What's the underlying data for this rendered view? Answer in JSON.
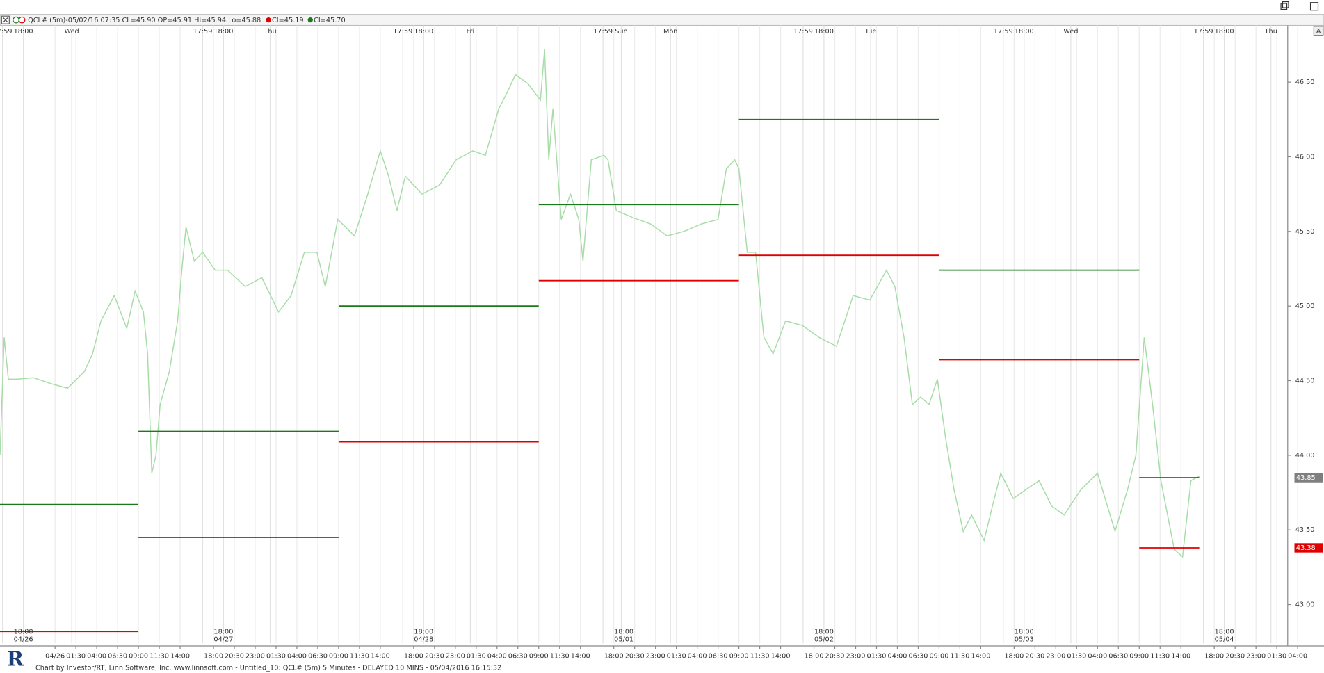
{
  "window": {
    "header": "QCL# (5m)-05/02/16 07:35 CL=45.90 OP=45.91 Hi=45.94 Lo=45.88",
    "autoscale_button": "A",
    "footer": "Chart by Investor/RT, Linn Software, Inc. www.linnsoft.com - Untitled_10: QCL# (5m) 5 Minutes - DELAYED 10 MINS - 05/04/2016 16:15:32"
  },
  "chart_data": {
    "type": "line",
    "x": [
      -1.6,
      -1.1,
      -0.6,
      0.4,
      2.4,
      4.5,
      6.5,
      8.5,
      9.5,
      10.5,
      12.1,
      13.6,
      14.6,
      15.6,
      16.1,
      16.6,
      17.1,
      17.6,
      18.7,
      19.7,
      20.2,
      20.7,
      21.7,
      22.7,
      24.2,
      25.7,
      27.8,
      29.8,
      31.8,
      33.3,
      34.9,
      36.4,
      37.4,
      38.9,
      40.9,
      42.5,
      44.0,
      45.0,
      46.0,
      47.0,
      48.0,
      49.0,
      51.1,
      53.1,
      55.1,
      56.6,
      58.2,
      59.2,
      60.2,
      61.7,
      63.2,
      63.7,
      64.2,
      64.7,
      65.7,
      66.8,
      67.8,
      68.3,
      69.3,
      70.8,
      71.3,
      72.3,
      74.4,
      76.4,
      78.4,
      80.4,
      82.5,
      84.5,
      85.5,
      86.5,
      87.0,
      88.0,
      89.0,
      90.0,
      91.1,
      92.6,
      94.6,
      96.6,
      98.7,
      100.7,
      102.7,
      104.7,
      105.7,
      106.8,
      107.8,
      108.8,
      109.8,
      110.8,
      111.8,
      112.8,
      113.9,
      114.9,
      116.4,
      117.4,
      118.4,
      119.9,
      121.4,
      123.0,
      124.5,
      126.0,
      128.0,
      130.0,
      132.1,
      133.6,
      134.6,
      135.6,
      136.6,
      137.6,
      139.2,
      140.2,
      141.2,
      142.2
    ],
    "series": [
      {
        "color": "#a6dca6",
        "values": [
          44.0,
          44.79,
          44.51,
          44.51,
          44.52,
          44.48,
          44.45,
          44.56,
          44.68,
          44.9,
          45.07,
          44.85,
          45.1,
          44.96,
          44.68,
          43.88,
          44.0,
          44.34,
          44.56,
          44.9,
          45.24,
          45.53,
          45.3,
          45.36,
          45.24,
          45.24,
          45.13,
          45.19,
          44.96,
          45.07,
          45.36,
          45.36,
          45.13,
          45.58,
          45.47,
          45.75,
          46.04,
          45.87,
          45.64,
          45.87,
          45.81,
          45.75,
          45.81,
          45.98,
          46.04,
          46.01,
          46.32,
          46.43,
          46.55,
          46.49,
          46.38,
          46.72,
          45.98,
          46.32,
          45.58,
          45.75,
          45.58,
          45.3,
          45.98,
          46.01,
          45.98,
          45.64,
          45.59,
          45.55,
          45.47,
          45.5,
          45.55,
          45.58,
          45.92,
          45.98,
          45.92,
          45.36,
          45.36,
          44.79,
          44.68,
          44.9,
          44.87,
          44.79,
          44.73,
          45.07,
          45.04,
          45.24,
          45.13,
          44.79,
          44.34,
          44.39,
          44.34,
          44.51,
          44.11,
          43.77,
          43.49,
          43.6,
          43.43,
          43.66,
          43.88,
          43.71,
          43.77,
          43.83,
          43.66,
          43.6,
          43.77,
          43.88,
          43.49,
          43.77,
          44.0,
          44.79,
          44.34,
          43.83,
          43.37,
          43.32,
          43.83,
          43.86
        ]
      }
    ],
    "level_lines": [
      {
        "name": "CI=45.19",
        "color": "#e00000",
        "segments": [
          {
            "x": [
              -1.6,
              15
            ],
            "value": 42.82
          },
          {
            "x": [
              15,
              39
            ],
            "value": 43.45
          },
          {
            "x": [
              39,
              63
            ],
            "value": 44.09
          },
          {
            "x": [
              63,
              87
            ],
            "value": 45.17
          },
          {
            "x": [
              87,
              111
            ],
            "value": 45.34
          },
          {
            "x": [
              111,
              135
            ],
            "value": 44.64
          },
          {
            "x": [
              135,
              142.2
            ],
            "value": 43.38
          }
        ]
      },
      {
        "name": "CI=45.70",
        "color": "#1a7a1a",
        "segments": [
          {
            "x": [
              -1.6,
              15
            ],
            "value": 43.67
          },
          {
            "x": [
              15,
              39
            ],
            "value": 44.16
          },
          {
            "x": [
              39,
              63
            ],
            "value": 45.0
          },
          {
            "x": [
              63,
              87
            ],
            "value": 45.68
          },
          {
            "x": [
              87,
              111
            ],
            "value": 46.25
          },
          {
            "x": [
              111,
              135
            ],
            "value": 45.24
          },
          {
            "x": [
              135,
              142.2
            ],
            "value": 43.85
          }
        ]
      }
    ],
    "price_labels": [
      {
        "value": 43.85,
        "label": "43.85",
        "color": "#7f7f7f"
      },
      {
        "value": 43.38,
        "label": "43.38",
        "color": "#e00000"
      }
    ],
    "xlim": [
      -1.6,
      152.5
    ],
    "ylim": [
      42.74,
      46.88
    ],
    "yticks": [
      {
        "value": 43,
        "label": "43.00"
      },
      {
        "value": 43.5,
        "label": "43.50"
      },
      {
        "value": 44,
        "label": "44.00"
      },
      {
        "value": 44.5,
        "label": "44.50"
      },
      {
        "value": 45,
        "label": "45.00"
      },
      {
        "value": 45.5,
        "label": "45.50"
      },
      {
        "value": 46,
        "label": "46.00"
      },
      {
        "value": 46.5,
        "label": "46.50"
      }
    ],
    "top_ticks": [
      {
        "value": -1.3,
        "label": "17:59"
      },
      {
        "value": 1.2,
        "label": "18:00"
      },
      {
        "value": 7,
        "label": "Wed"
      },
      {
        "value": 22.7,
        "label": "17:59"
      },
      {
        "value": 25.2,
        "label": "18:00"
      },
      {
        "value": 30.8,
        "label": "Thu"
      },
      {
        "value": 46.7,
        "label": "17:59"
      },
      {
        "value": 49.2,
        "label": "18:00"
      },
      {
        "value": 54.8,
        "label": "Fri"
      },
      {
        "value": 70.7,
        "label": "17:59"
      },
      {
        "value": 72.9,
        "label": "Sun"
      },
      {
        "value": 78.8,
        "label": "Mon"
      },
      {
        "value": 94.7,
        "label": "17:59"
      },
      {
        "value": 97.2,
        "label": "18:00"
      },
      {
        "value": 102.8,
        "label": "Tue"
      },
      {
        "value": 118.7,
        "label": "17:59"
      },
      {
        "value": 121.2,
        "label": "18:00"
      },
      {
        "value": 126.8,
        "label": "Wed"
      },
      {
        "value": 142.7,
        "label": "17:59"
      },
      {
        "value": 145.2,
        "label": "18:00"
      },
      {
        "value": 150.8,
        "label": "Thu"
      }
    ],
    "session_labels": [
      {
        "value": 1.2,
        "time": "18:00",
        "date": "04/26"
      },
      {
        "value": 25.2,
        "time": "18:00",
        "date": "04/27"
      },
      {
        "value": 49.2,
        "time": "18:00",
        "date": "04/28"
      },
      {
        "value": 73.2,
        "time": "18:00",
        "date": "05/01"
      },
      {
        "value": 97.2,
        "time": "18:00",
        "date": "05/02"
      },
      {
        "value": 121.2,
        "time": "18:00",
        "date": "05/03"
      },
      {
        "value": 145.2,
        "time": "18:00",
        "date": "05/04"
      }
    ],
    "xticks": [
      {
        "value": 5,
        "label": "04/26"
      },
      {
        "value": 7.5,
        "label": "01:30"
      },
      {
        "value": 10,
        "label": "04:00"
      },
      {
        "value": 12.5,
        "label": "06:30"
      },
      {
        "value": 15,
        "label": "09:00"
      },
      {
        "value": 17.5,
        "label": "11:30"
      },
      {
        "value": 20,
        "label": "14:00"
      },
      {
        "value": 24,
        "label": "18:00"
      },
      {
        "value": 26.5,
        "label": "20:30"
      },
      {
        "value": 29,
        "label": "23:00"
      },
      {
        "value": 31.5,
        "label": "01:30"
      },
      {
        "value": 34,
        "label": "04:00"
      },
      {
        "value": 36.5,
        "label": "06:30"
      },
      {
        "value": 39,
        "label": "09:00"
      },
      {
        "value": 41.5,
        "label": "11:30"
      },
      {
        "value": 44,
        "label": "14:00"
      },
      {
        "value": 48,
        "label": "18:00"
      },
      {
        "value": 50.5,
        "label": "20:30"
      },
      {
        "value": 53,
        "label": "23:00"
      },
      {
        "value": 55.5,
        "label": "01:30"
      },
      {
        "value": 58,
        "label": "04:00"
      },
      {
        "value": 60.5,
        "label": "06:30"
      },
      {
        "value": 63,
        "label": "09:00"
      },
      {
        "value": 65.5,
        "label": "11:30"
      },
      {
        "value": 68,
        "label": "14:00"
      },
      {
        "value": 72,
        "label": "18:00"
      },
      {
        "value": 74.5,
        "label": "20:30"
      },
      {
        "value": 77,
        "label": "23:00"
      },
      {
        "value": 79.5,
        "label": "01:30"
      },
      {
        "value": 82,
        "label": "04:00"
      },
      {
        "value": 84.5,
        "label": "06:30"
      },
      {
        "value": 87,
        "label": "09:00"
      },
      {
        "value": 89.5,
        "label": "11:30"
      },
      {
        "value": 92,
        "label": "14:00"
      },
      {
        "value": 96,
        "label": "18:00"
      },
      {
        "value": 98.5,
        "label": "20:30"
      },
      {
        "value": 101,
        "label": "23:00"
      },
      {
        "value": 103.5,
        "label": "01:30"
      },
      {
        "value": 106,
        "label": "04:00"
      },
      {
        "value": 108.5,
        "label": "06:30"
      },
      {
        "value": 111,
        "label": "09:00"
      },
      {
        "value": 113.5,
        "label": "11:30"
      },
      {
        "value": 116,
        "label": "14:00"
      },
      {
        "value": 120,
        "label": "18:00"
      },
      {
        "value": 122.5,
        "label": "20:30"
      },
      {
        "value": 125,
        "label": "23:00"
      },
      {
        "value": 127.5,
        "label": "01:30"
      },
      {
        "value": 130,
        "label": "04:00"
      },
      {
        "value": 132.5,
        "label": "06:30"
      },
      {
        "value": 135,
        "label": "09:00"
      },
      {
        "value": 137.5,
        "label": "11:30"
      },
      {
        "value": 140,
        "label": "14:00"
      },
      {
        "value": 144,
        "label": "18:00"
      },
      {
        "value": 146.5,
        "label": "20:30"
      },
      {
        "value": 149,
        "label": "23:00"
      },
      {
        "value": 151.5,
        "label": "01:30"
      },
      {
        "value": 154,
        "label": "04:00"
      }
    ],
    "grid": true
  }
}
